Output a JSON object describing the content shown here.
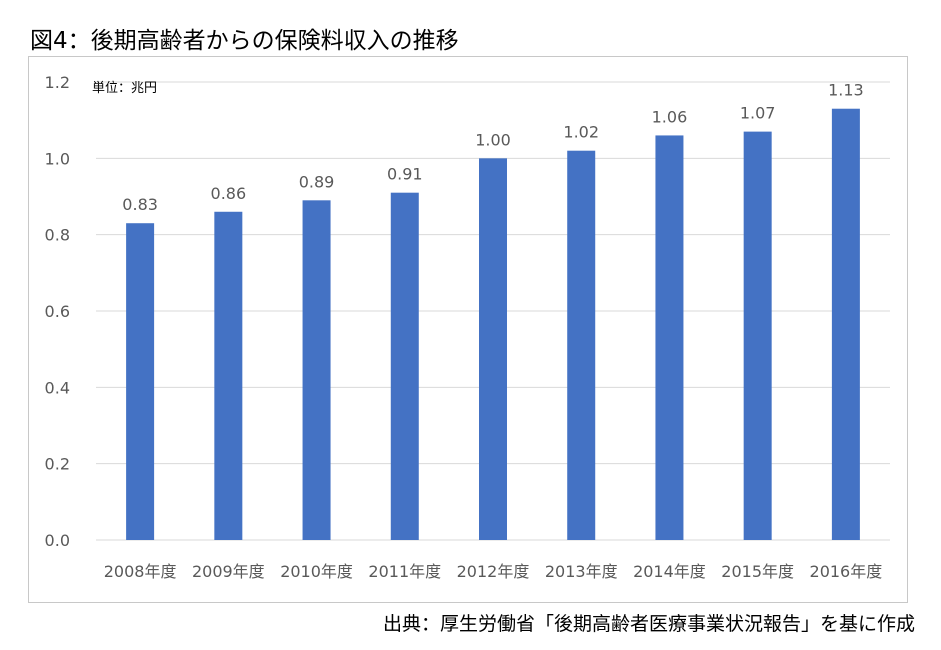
{
  "title": "図4：後期高齢者からの保険料収入の推移",
  "source": "出典：厚生労働省「後期高齢者医療事業状況報告」を基に作成",
  "chart_data": {
    "type": "bar",
    "title": "図4：後期高齢者からの保険料収入の推移",
    "unit_label": "単位：兆円",
    "categories": [
      "2008年度",
      "2009年度",
      "2010年度",
      "2011年度",
      "2012年度",
      "2013年度",
      "2014年度",
      "2015年度",
      "2016年度"
    ],
    "values": [
      0.83,
      0.86,
      0.89,
      0.91,
      1.0,
      1.02,
      1.06,
      1.07,
      1.13
    ],
    "data_labels": [
      "0.83",
      "0.86",
      "0.89",
      "0.91",
      "1.00",
      "1.02",
      "1.06",
      "1.07",
      "1.13"
    ],
    "yticks": [
      "0.0",
      "0.2",
      "0.4",
      "0.6",
      "0.8",
      "1.0",
      "1.2"
    ],
    "ylim": [
      0,
      1.2
    ],
    "xlabel": "",
    "ylabel": "",
    "grid": true,
    "legend": "none",
    "colors": {
      "bar": "#4472c4",
      "grid": "#d9d9d9",
      "axis_text": "#595959"
    }
  }
}
